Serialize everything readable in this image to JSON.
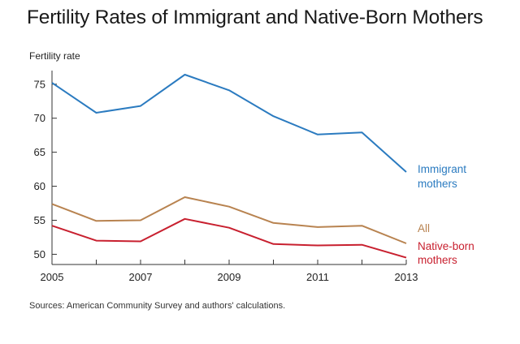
{
  "chart_data": {
    "type": "line",
    "title": "Fertility Rates of Immigrant and Native-Born Mothers",
    "ylabel": "Fertility rate",
    "xlabel": "",
    "x": [
      2005,
      2006,
      2007,
      2008,
      2009,
      2010,
      2011,
      2012,
      2013
    ],
    "x_ticks": [
      "2005",
      "2007",
      "2009",
      "2011",
      "2013"
    ],
    "y_ticks": [
      "50",
      "55",
      "60",
      "65",
      "70",
      "75"
    ],
    "xlim": [
      2005,
      2013
    ],
    "ylim": [
      48.5,
      77
    ],
    "grid": false,
    "series": [
      {
        "name": "Immigrant mothers",
        "label_lines": [
          "Immigrant",
          "mothers"
        ],
        "color": "#2b7bc0",
        "values": [
          75.2,
          70.8,
          71.8,
          76.4,
          74.1,
          70.3,
          67.6,
          67.9,
          62.1
        ]
      },
      {
        "name": "All",
        "label_lines": [
          "All"
        ],
        "color": "#b88350",
        "values": [
          57.4,
          54.9,
          55.0,
          58.4,
          57.0,
          54.6,
          54.0,
          54.2,
          51.6
        ]
      },
      {
        "name": "Native-born mothers",
        "label_lines": [
          "Native-born",
          "mothers"
        ],
        "color": "#c8202f",
        "values": [
          54.2,
          52.0,
          51.9,
          55.2,
          53.9,
          51.5,
          51.3,
          51.4,
          49.5
        ]
      }
    ]
  },
  "source": "Sources: American Community Survey and authors' calculations."
}
